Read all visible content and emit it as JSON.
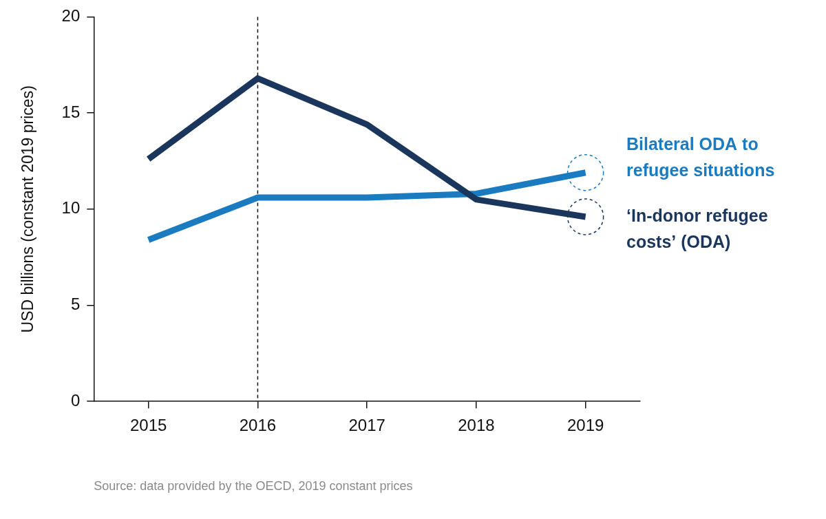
{
  "chart_data": {
    "type": "line",
    "categories": [
      "2015",
      "2016",
      "2017",
      "2018",
      "2019"
    ],
    "y_label": "USD billions (constant 2019 prices)",
    "source": "Source: data provided by the OECD, 2019 constant prices",
    "series": [
      {
        "name": "‘In-donor refugee costs’ (ODA)",
        "color": "#1b365d",
        "values": [
          12.6,
          16.8,
          14.4,
          10.5,
          9.6
        ]
      },
      {
        "name": "Bilateral ODA to refugee situations",
        "color": "#1a7bc1",
        "values": [
          8.4,
          10.6,
          10.6,
          10.8,
          11.9
        ]
      }
    ],
    "ylim": [
      0,
      20
    ],
    "yticks": [
      0,
      5,
      10,
      15,
      20
    ],
    "grid": false,
    "vline": "2016"
  }
}
